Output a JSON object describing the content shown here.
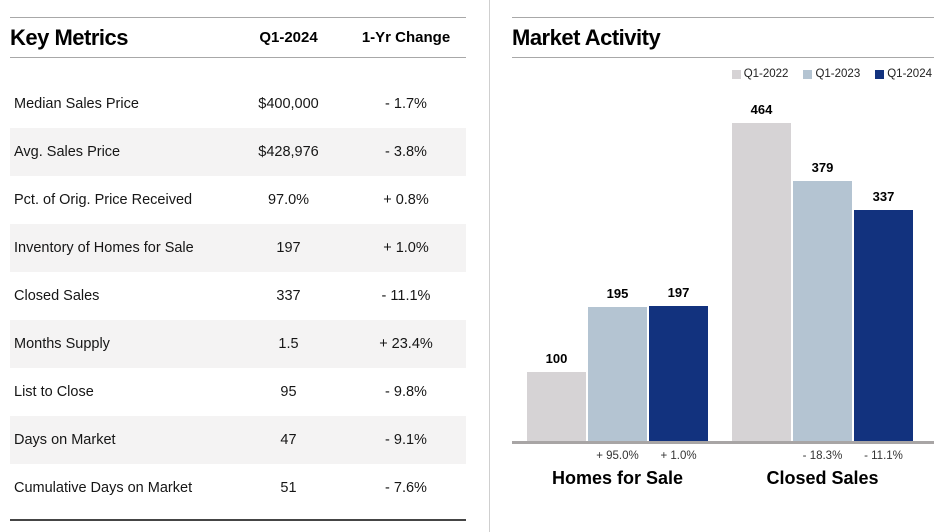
{
  "key_metrics": {
    "title": "Key Metrics",
    "col_value": "Q1-2024",
    "col_change": "1-Yr Change",
    "rows": [
      {
        "label": "Median Sales Price",
        "value": "$400,000",
        "change": "- 1.7%"
      },
      {
        "label": "Avg. Sales Price",
        "value": "$428,976",
        "change": "- 3.8%"
      },
      {
        "label": "Pct. of Orig. Price Received",
        "value": "97.0%",
        "change": "+ 0.8%"
      },
      {
        "label": "Inventory of Homes for Sale",
        "value": "197",
        "change": "+ 1.0%"
      },
      {
        "label": "Closed Sales",
        "value": "337",
        "change": "- 11.1%"
      },
      {
        "label": "Months Supply",
        "value": "1.5",
        "change": "+ 23.4%"
      },
      {
        "label": "List to Close",
        "value": "95",
        "change": "- 9.8%"
      },
      {
        "label": "Days on Market",
        "value": "47",
        "change": "- 9.1%"
      },
      {
        "label": "Cumulative Days on Market",
        "value": "51",
        "change": "- 7.6%"
      }
    ]
  },
  "market_activity": {
    "title": "Market Activity"
  },
  "chart_data": {
    "type": "bar",
    "title": "Market Activity",
    "categories": [
      "Homes for Sale",
      "Closed Sales"
    ],
    "series": [
      {
        "name": "Q1-2022",
        "color": "#d6d3d5",
        "values": [
          100,
          464
        ]
      },
      {
        "name": "Q1-2023",
        "color": "#b4c4d2",
        "values": [
          195,
          379
        ]
      },
      {
        "name": "Q1-2024",
        "color": "#12327e",
        "values": [
          197,
          337
        ]
      }
    ],
    "pct_change_labels": [
      [
        "+ 95.0%",
        "+ 1.0%"
      ],
      [
        "- 18.3%",
        "- 11.1%"
      ]
    ],
    "legend_position": "top-right",
    "grid": false,
    "ylim": [
      0,
      480
    ]
  },
  "colors": {
    "bar_q1_2022": "#d6d3d5",
    "bar_q1_2023": "#b4c4d2",
    "bar_q1_2024": "#12327e",
    "alt_row_bg": "#f4f3f3",
    "header_rule": "#a8a8a8",
    "axis_line": "#a8a5a5",
    "table_bottom_rule": "#454545"
  }
}
